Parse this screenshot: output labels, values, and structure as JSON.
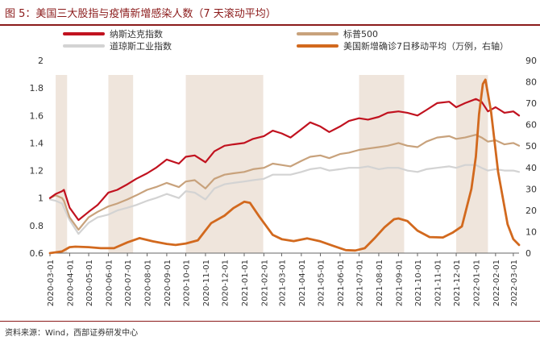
{
  "header": {
    "title": "图 5：美国三大股指与疫情新增感染人数（7 天滚动平均）"
  },
  "footer": {
    "source": "资料来源：Wind，西部证券研发中心"
  },
  "colors": {
    "nasdaq": "#c1121f",
    "sp500": "#c8a27c",
    "dow": "#d3d3d3",
    "cases": "#d2691e",
    "shade": "#efe5dc",
    "title": "#8b1a1a"
  },
  "chart_data": {
    "type": "line",
    "title": "美国三大股指与疫情新增感染人数（7 天滚动平均）",
    "xlabel": "",
    "ylabel_left": "",
    "ylabel_right": "",
    "ylim_left": [
      0.6,
      2.0
    ],
    "yticks_left": [
      "0.6",
      "0.8",
      "1",
      "1.2",
      "1.4",
      "1.6",
      "1.8",
      "2"
    ],
    "ylim_right": [
      0,
      90
    ],
    "yticks_right": [
      "0",
      "10",
      "20",
      "30",
      "40",
      "50",
      "60",
      "70",
      "80",
      "90"
    ],
    "x_ticks": [
      "2020-03-01",
      "2020-04-01",
      "2020-05-01",
      "2020-06-01",
      "2020-07-01",
      "2020-08-01",
      "2020-09-01",
      "2020-10-01",
      "2020-11-01",
      "2020-12-01",
      "2021-01-01",
      "2021-02-01",
      "2021-03-01",
      "2021-04-01",
      "2021-05-01",
      "2021-06-01",
      "2021-07-01",
      "2021-08-01",
      "2021-09-01",
      "2021-10-01",
      "2021-11-01",
      "2021-12-01",
      "2022-01-01",
      "2022-02-01",
      "2022-03-01"
    ],
    "shaded_periods": [
      [
        "2020-03-10",
        "2020-03-28"
      ],
      [
        "2020-06-01",
        "2020-07-10"
      ],
      [
        "2020-10-01",
        "2021-01-31"
      ],
      [
        "2021-07-01",
        "2021-09-10"
      ],
      [
        "2021-12-01",
        "2022-01-20"
      ]
    ],
    "legend": [
      {
        "name": "纳斯达克指数",
        "key": "nasdaq",
        "axis": "left"
      },
      {
        "name": "标普500",
        "key": "sp500",
        "axis": "left"
      },
      {
        "name": "道琼斯工业指数",
        "key": "dow",
        "axis": "left"
      },
      {
        "name": "美国新增确诊7日移动平均（万例，右轴）",
        "key": "cases",
        "axis": "right"
      }
    ],
    "series": [
      {
        "name": "纳斯达克指数",
        "key": "nasdaq",
        "axis": "left",
        "dates": [
          "2020-03-01",
          "2020-03-10",
          "2020-03-20",
          "2020-03-23",
          "2020-04-01",
          "2020-04-15",
          "2020-05-01",
          "2020-05-15",
          "2020-06-01",
          "2020-06-15",
          "2020-07-01",
          "2020-07-15",
          "2020-08-01",
          "2020-08-15",
          "2020-09-01",
          "2020-09-20",
          "2020-10-01",
          "2020-10-15",
          "2020-11-01",
          "2020-11-15",
          "2020-12-01",
          "2020-12-15",
          "2021-01-01",
          "2021-01-15",
          "2021-02-01",
          "2021-02-15",
          "2021-03-01",
          "2021-03-15",
          "2021-04-01",
          "2021-04-15",
          "2021-05-01",
          "2021-05-15",
          "2021-06-01",
          "2021-06-15",
          "2021-07-01",
          "2021-07-15",
          "2021-08-01",
          "2021-08-15",
          "2021-09-01",
          "2021-09-15",
          "2021-10-01",
          "2021-10-15",
          "2021-11-01",
          "2021-11-20",
          "2021-12-01",
          "2021-12-15",
          "2022-01-01",
          "2022-01-10",
          "2022-01-20",
          "2022-02-01",
          "2022-02-15",
          "2022-03-01",
          "2022-03-10"
        ],
        "values": [
          1.0,
          1.03,
          1.05,
          1.06,
          0.93,
          0.84,
          0.9,
          0.95,
          1.04,
          1.06,
          1.1,
          1.14,
          1.18,
          1.22,
          1.28,
          1.25,
          1.3,
          1.31,
          1.26,
          1.34,
          1.38,
          1.39,
          1.4,
          1.43,
          1.45,
          1.49,
          1.47,
          1.44,
          1.5,
          1.55,
          1.52,
          1.48,
          1.52,
          1.56,
          1.58,
          1.57,
          1.59,
          1.62,
          1.63,
          1.62,
          1.6,
          1.64,
          1.69,
          1.7,
          1.66,
          1.69,
          1.72,
          1.7,
          1.63,
          1.66,
          1.62,
          1.63,
          1.6
        ]
      },
      {
        "name": "标普500",
        "key": "sp500",
        "axis": "left",
        "dates": [
          "2020-03-01",
          "2020-03-10",
          "2020-03-20",
          "2020-03-23",
          "2020-04-01",
          "2020-04-15",
          "2020-05-01",
          "2020-05-15",
          "2020-06-01",
          "2020-06-15",
          "2020-07-01",
          "2020-07-15",
          "2020-08-01",
          "2020-08-15",
          "2020-09-01",
          "2020-09-20",
          "2020-10-01",
          "2020-10-15",
          "2020-11-01",
          "2020-11-15",
          "2020-12-01",
          "2020-12-15",
          "2021-01-01",
          "2021-01-15",
          "2021-02-01",
          "2021-02-15",
          "2021-03-01",
          "2021-03-15",
          "2021-04-01",
          "2021-04-15",
          "2021-05-01",
          "2021-05-15",
          "2021-06-01",
          "2021-06-15",
          "2021-07-01",
          "2021-07-15",
          "2021-08-01",
          "2021-08-15",
          "2021-09-01",
          "2021-09-15",
          "2021-10-01",
          "2021-10-15",
          "2021-11-01",
          "2021-11-20",
          "2021-12-01",
          "2021-12-15",
          "2022-01-01",
          "2022-01-10",
          "2022-01-20",
          "2022-02-01",
          "2022-02-15",
          "2022-03-01",
          "2022-03-10"
        ],
        "values": [
          1.0,
          1.02,
          1.0,
          0.98,
          0.86,
          0.77,
          0.86,
          0.9,
          0.94,
          0.96,
          0.99,
          1.02,
          1.06,
          1.08,
          1.11,
          1.08,
          1.12,
          1.13,
          1.07,
          1.14,
          1.17,
          1.18,
          1.19,
          1.21,
          1.22,
          1.25,
          1.24,
          1.23,
          1.27,
          1.3,
          1.31,
          1.29,
          1.32,
          1.33,
          1.35,
          1.36,
          1.37,
          1.38,
          1.4,
          1.38,
          1.37,
          1.41,
          1.44,
          1.45,
          1.43,
          1.44,
          1.46,
          1.44,
          1.41,
          1.42,
          1.39,
          1.4,
          1.38
        ]
      },
      {
        "name": "道琼斯工业指数",
        "key": "dow",
        "axis": "left",
        "dates": [
          "2020-03-01",
          "2020-03-10",
          "2020-03-20",
          "2020-03-23",
          "2020-04-01",
          "2020-04-15",
          "2020-05-01",
          "2020-05-15",
          "2020-06-01",
          "2020-06-15",
          "2020-07-01",
          "2020-07-15",
          "2020-08-01",
          "2020-08-15",
          "2020-09-01",
          "2020-09-20",
          "2020-10-01",
          "2020-10-15",
          "2020-11-01",
          "2020-11-15",
          "2020-12-01",
          "2020-12-15",
          "2021-01-01",
          "2021-01-15",
          "2021-02-01",
          "2021-02-15",
          "2021-03-01",
          "2021-03-15",
          "2021-04-01",
          "2021-04-15",
          "2021-05-01",
          "2021-05-15",
          "2021-06-01",
          "2021-06-15",
          "2021-07-01",
          "2021-07-15",
          "2021-08-01",
          "2021-08-15",
          "2021-09-01",
          "2021-09-15",
          "2021-10-01",
          "2021-10-15",
          "2021-11-01",
          "2021-11-20",
          "2021-12-01",
          "2021-12-15",
          "2022-01-01",
          "2022-01-10",
          "2022-01-20",
          "2022-02-01",
          "2022-02-15",
          "2022-03-01",
          "2022-03-10"
        ],
        "values": [
          0.99,
          0.98,
          0.96,
          0.93,
          0.84,
          0.74,
          0.82,
          0.86,
          0.88,
          0.91,
          0.93,
          0.95,
          0.98,
          1.0,
          1.03,
          1.0,
          1.05,
          1.04,
          0.99,
          1.07,
          1.1,
          1.11,
          1.12,
          1.13,
          1.14,
          1.17,
          1.17,
          1.17,
          1.19,
          1.21,
          1.22,
          1.2,
          1.21,
          1.22,
          1.22,
          1.23,
          1.21,
          1.22,
          1.22,
          1.2,
          1.19,
          1.21,
          1.22,
          1.23,
          1.22,
          1.24,
          1.24,
          1.22,
          1.2,
          1.21,
          1.2,
          1.2,
          1.19
        ]
      },
      {
        "name": "美国新增确诊7日移动平均（万例，右轴）",
        "key": "cases",
        "axis": "right",
        "dates": [
          "2020-03-01",
          "2020-03-20",
          "2020-04-01",
          "2020-04-10",
          "2020-05-01",
          "2020-05-20",
          "2020-06-10",
          "2020-07-01",
          "2020-07-20",
          "2020-08-10",
          "2020-09-01",
          "2020-09-15",
          "2020-10-01",
          "2020-10-20",
          "2020-11-10",
          "2020-12-01",
          "2020-12-15",
          "2021-01-01",
          "2021-01-10",
          "2021-01-25",
          "2021-02-15",
          "2021-03-01",
          "2021-03-20",
          "2021-04-10",
          "2021-05-01",
          "2021-05-20",
          "2021-06-10",
          "2021-06-25",
          "2021-07-10",
          "2021-07-25",
          "2021-08-10",
          "2021-08-25",
          "2021-09-01",
          "2021-09-15",
          "2021-10-01",
          "2021-10-20",
          "2021-11-10",
          "2021-11-25",
          "2021-12-10",
          "2021-12-25",
          "2022-01-01",
          "2022-01-06",
          "2022-01-12",
          "2022-01-16",
          "2022-01-25",
          "2022-02-05",
          "2022-02-20",
          "2022-03-01",
          "2022-03-10"
        ],
        "values": [
          0,
          0.8,
          2.8,
          3.0,
          2.8,
          2.3,
          2.3,
          5.0,
          7.0,
          5.5,
          4.3,
          3.8,
          4.5,
          6.0,
          14.0,
          17.5,
          21.0,
          24.0,
          23.5,
          17.0,
          8.5,
          6.5,
          5.6,
          6.9,
          5.5,
          3.5,
          1.4,
          1.2,
          2.3,
          6.8,
          12.0,
          15.8,
          16.2,
          15.0,
          10.5,
          7.5,
          7.3,
          9.5,
          12.5,
          30.0,
          45.0,
          65.0,
          79.0,
          81.0,
          66.0,
          38.0,
          13.5,
          6.5,
          3.8
        ]
      }
    ]
  }
}
